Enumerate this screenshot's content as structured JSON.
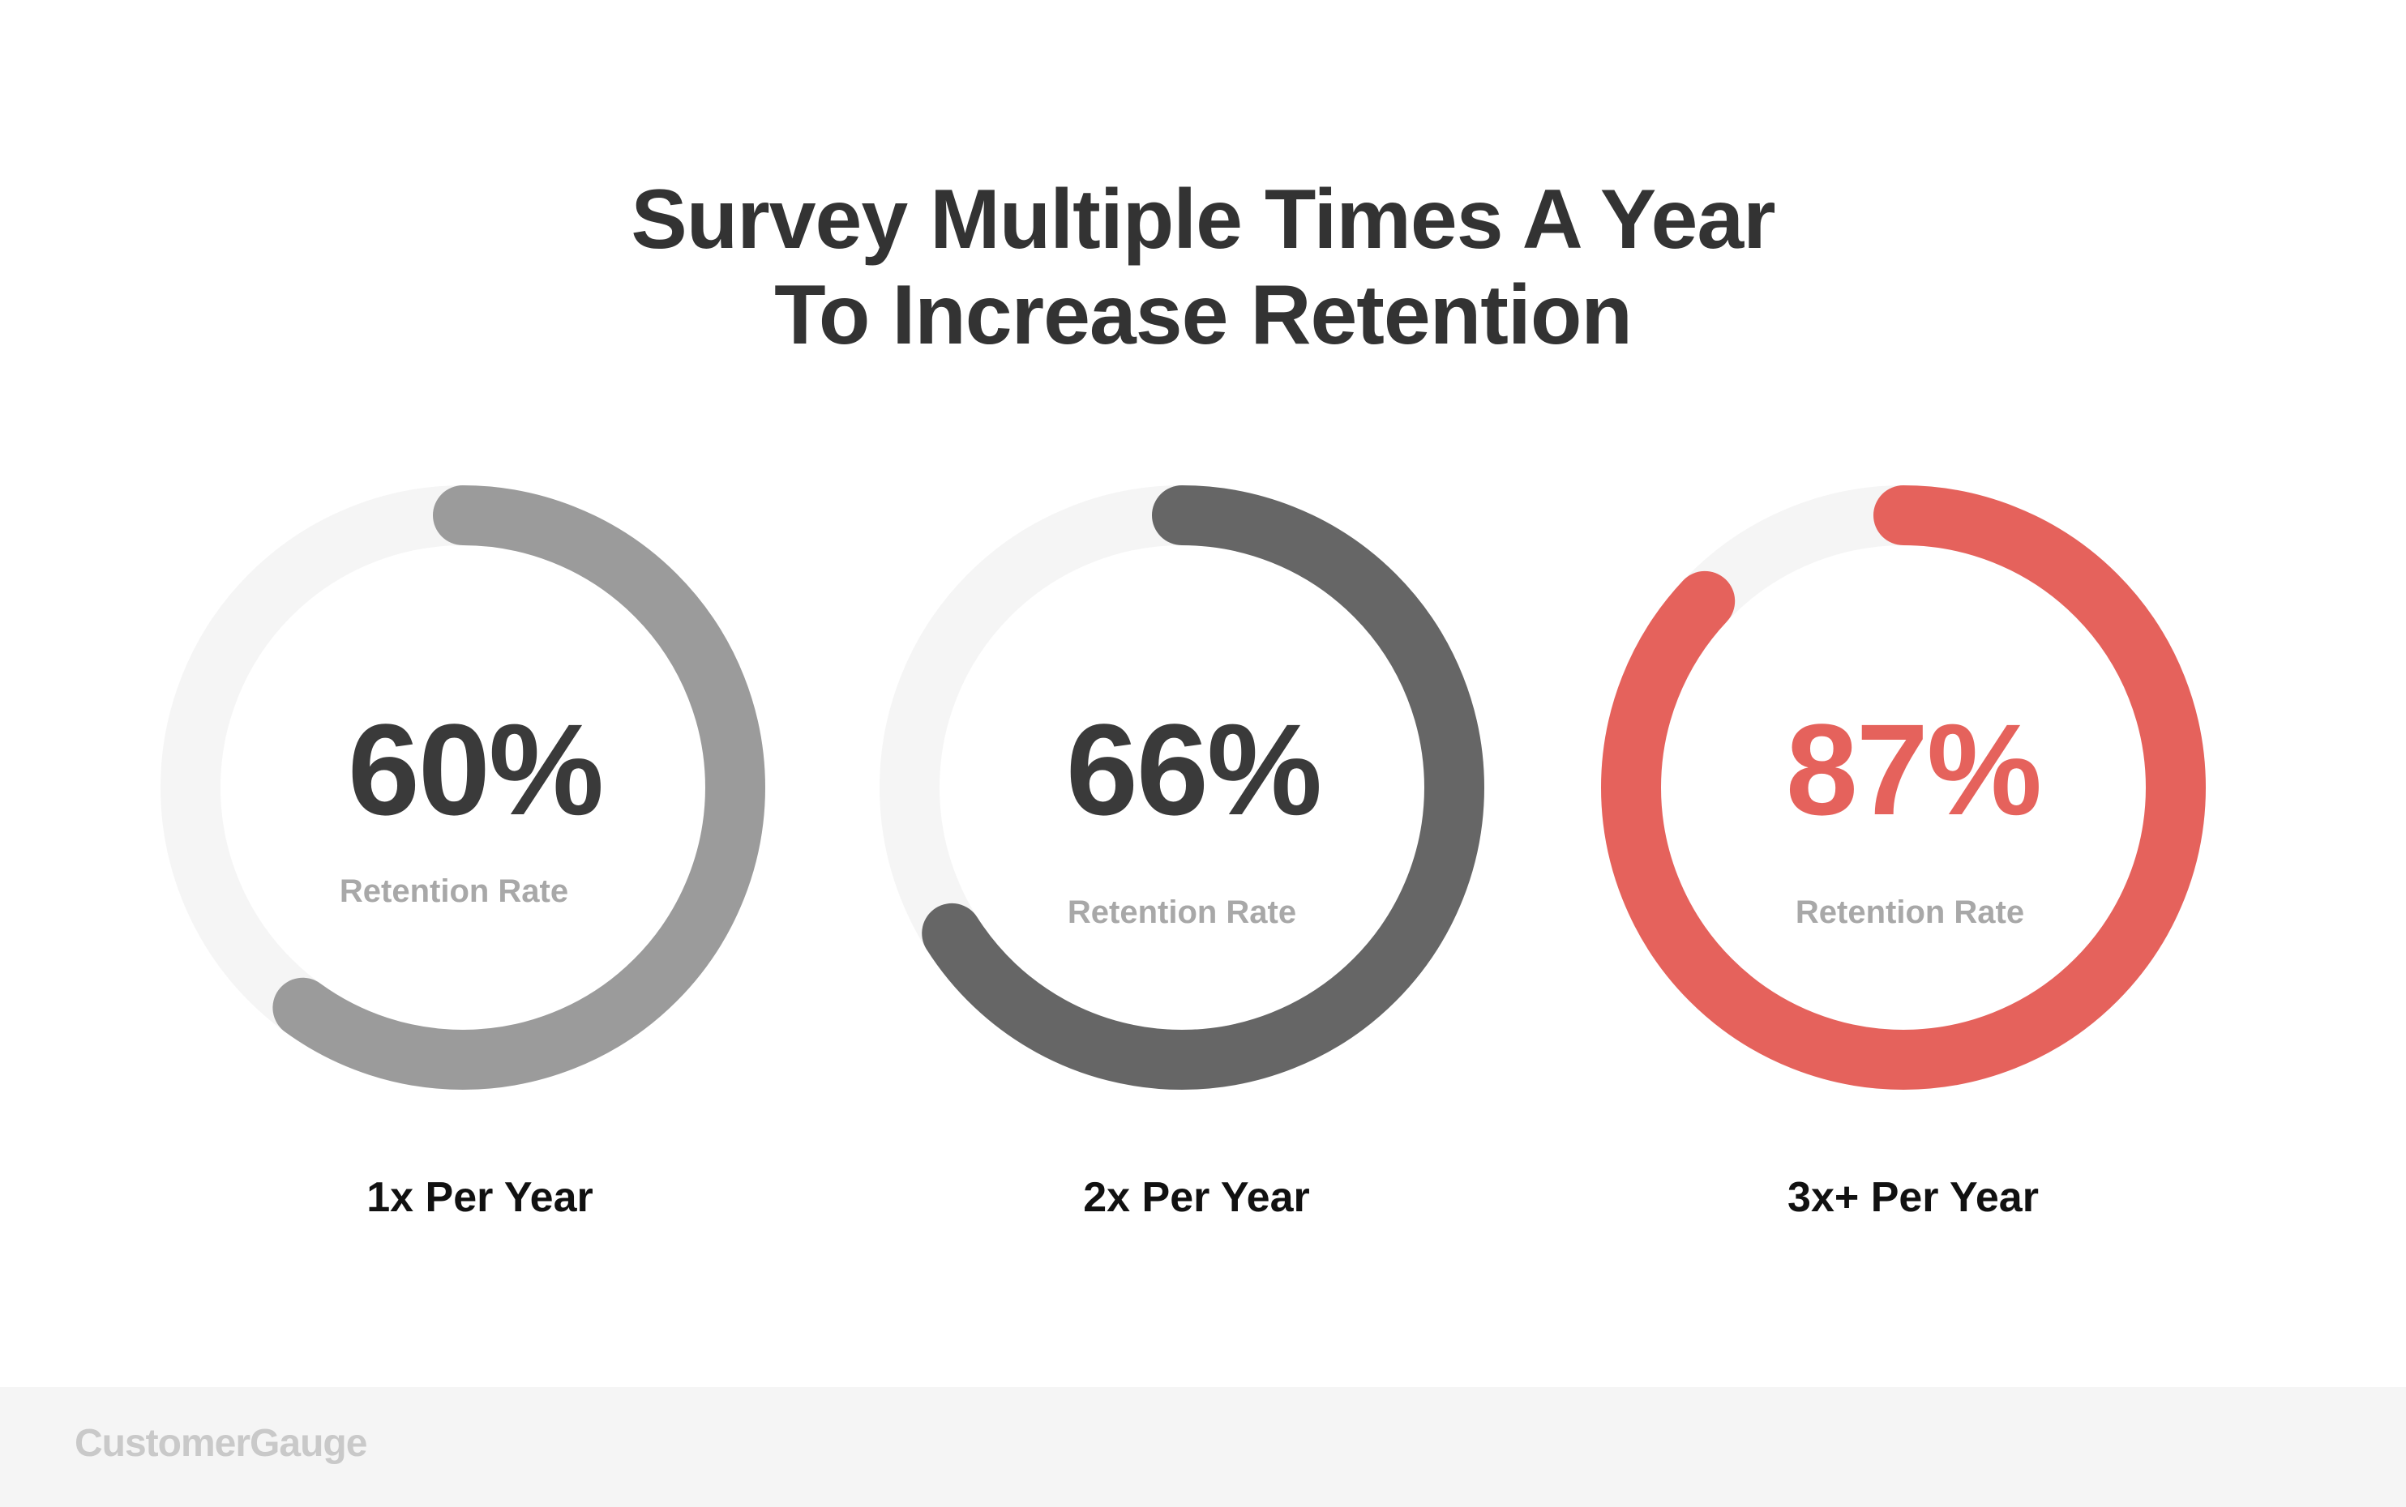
{
  "chart_data": {
    "type": "pie",
    "title_line1": "Survey Multiple Times A Year",
    "title_line2": "To Increase Retention",
    "series": [
      {
        "value": 60,
        "percent_label": "60%",
        "metric_label": "Retention Rate",
        "category": "1x Per Year",
        "arc_color": "#9b9b9b",
        "text_color": "#3a3a3a"
      },
      {
        "value": 66,
        "percent_label": "66%",
        "metric_label": "Retention Rate",
        "category": "2x Per Year",
        "arc_color": "#666666",
        "text_color": "#3a3a3a"
      },
      {
        "value": 87,
        "percent_label": "87%",
        "metric_label": "Retention Rate",
        "category": "3x+ Per Year",
        "arc_color": "#e5625c",
        "text_color": "#e5625c"
      }
    ],
    "track_color": "#f5f5f5",
    "max": 100
  },
  "footer": {
    "brand": "CustomerGauge"
  }
}
